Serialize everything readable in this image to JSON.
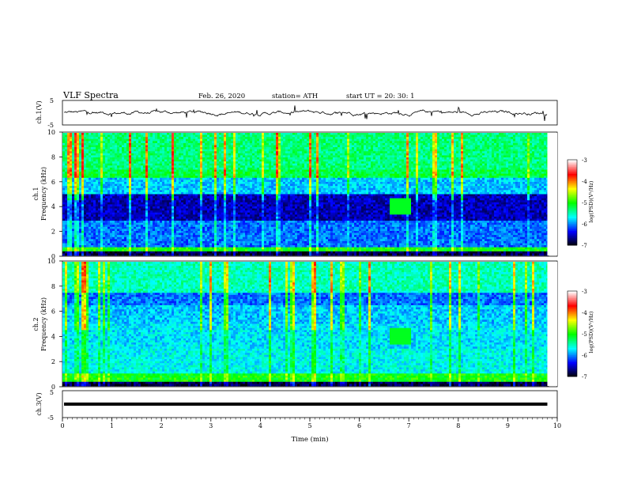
{
  "header": {
    "title": "VLF Spectra",
    "date": "Feb. 26, 2020",
    "station": "station= ATH",
    "start": "start  UT  =    20: 30: 1"
  },
  "chart_data": [
    {
      "type": "line",
      "name": "ch1-waveform",
      "ylabel": "ch.1(V)",
      "yticks": [
        "5",
        "-5"
      ],
      "ylim": [
        -5,
        5
      ],
      "xlim": [
        0,
        10
      ],
      "data_extent_min": 9.8
    },
    {
      "type": "heatmap",
      "name": "ch1-spectrogram",
      "ylabel_top": "ch.1",
      "ylabel": "Frequency  (kHz)",
      "xlim": [
        0,
        10
      ],
      "ylim": [
        0,
        10
      ],
      "yticks": [
        "0",
        "2",
        "4",
        "6",
        "8",
        "10"
      ],
      "colorbar": {
        "label": "log(PSD)(V²/Hz)",
        "ticks": [
          "-3",
          "-4",
          "-5",
          "-6",
          "-7"
        ],
        "range": [
          -7,
          -3
        ]
      }
    },
    {
      "type": "heatmap",
      "name": "ch2-spectrogram",
      "ylabel_top": "ch.2",
      "ylabel": "Frequency  (kHz)",
      "xlim": [
        0,
        10
      ],
      "ylim": [
        0,
        10
      ],
      "yticks": [
        "0",
        "2",
        "4",
        "6",
        "8",
        "10"
      ],
      "colorbar": {
        "label": "log(PSD)(V²/Hz)",
        "ticks": [
          "-3",
          "-4",
          "-5",
          "-6",
          "-7"
        ],
        "range": [
          -7,
          -3
        ]
      }
    },
    {
      "type": "line",
      "name": "ch3-waveform",
      "ylabel": "ch.3(V)",
      "yticks": [
        "5",
        "-5"
      ],
      "ylim": [
        -5,
        5
      ],
      "xlim": [
        0,
        10
      ],
      "constant_value": 0
    }
  ],
  "xaxis": {
    "label": "Time  (min)",
    "ticks": [
      "0",
      "1",
      "2",
      "3",
      "4",
      "5",
      "6",
      "7",
      "8",
      "9",
      "10"
    ]
  },
  "colors": {
    "background": "#00001a",
    "colormap": [
      "#000000",
      "#0000ff",
      "#00ffff",
      "#00ff00",
      "#ffff00",
      "#ff0000",
      "#ffffff"
    ]
  }
}
